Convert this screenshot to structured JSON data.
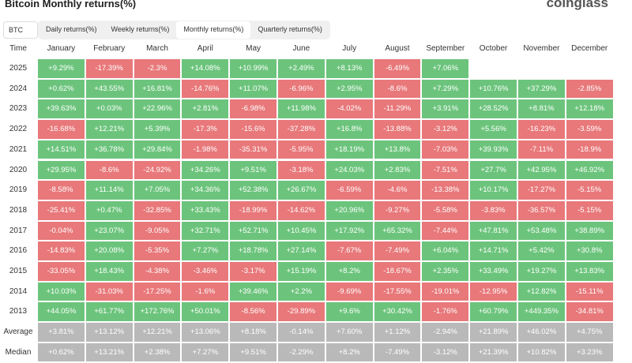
{
  "header": {
    "title": "Bitcoin Monthly returns(%)",
    "logo": "coinglass"
  },
  "selector": "BTC",
  "tabs": [
    "Daily returns(%)",
    "Weekly returns(%)",
    "Monthly returns(%)",
    "Quarterly returns(%)"
  ],
  "active_tab": 2,
  "colors": {
    "positive": "#6cc47c",
    "negative": "#e8787a",
    "summary": "#b9b9b9"
  },
  "table": {
    "columns": [
      "Time",
      "January",
      "February",
      "March",
      "April",
      "May",
      "June",
      "July",
      "August",
      "September",
      "October",
      "November",
      "December"
    ],
    "rows": [
      [
        "2025",
        "+9.29%",
        "-17.39%",
        "-2.3%",
        "+14.08%",
        "+10.99%",
        "+2.49%",
        "+8.13%",
        "-6.49%",
        "+7.06%"
      ],
      [
        "2024",
        "+0.62%",
        "+43.55%",
        "+16.81%",
        "-14.76%",
        "+11.07%",
        "-6.96%",
        "+2.95%",
        "-8.6%",
        "+7.29%",
        "+10.76%",
        "+37.29%",
        "-2.85%"
      ],
      [
        "2023",
        "+39.63%",
        "+0.03%",
        "+22.96%",
        "+2.81%",
        "-6.98%",
        "+11.98%",
        "-4.02%",
        "-11.29%",
        "+3.91%",
        "+28.52%",
        "+8.81%",
        "+12.18%"
      ],
      [
        "2022",
        "-16.68%",
        "+12.21%",
        "+5.39%",
        "-17.3%",
        "-15.6%",
        "-37.28%",
        "+16.8%",
        "-13.88%",
        "-3.12%",
        "+5.56%",
        "-16.23%",
        "-3.59%"
      ],
      [
        "2021",
        "+14.51%",
        "+36.78%",
        "+29.84%",
        "-1.98%",
        "-35.31%",
        "-5.95%",
        "+18.19%",
        "+13.8%",
        "-7.03%",
        "+39.93%",
        "-7.11%",
        "-18.9%"
      ],
      [
        "2020",
        "+29.95%",
        "-8.6%",
        "-24.92%",
        "+34.26%",
        "+9.51%",
        "-3.18%",
        "+24.03%",
        "+2.83%",
        "-7.51%",
        "+27.7%",
        "+42.95%",
        "+46.92%"
      ],
      [
        "2019",
        "-8.58%",
        "+11.14%",
        "+7.05%",
        "+34.36%",
        "+52.38%",
        "+26.67%",
        "-6.59%",
        "-4.6%",
        "-13.38%",
        "+10.17%",
        "-17.27%",
        "-5.15%"
      ],
      [
        "2018",
        "-25.41%",
        "+0.47%",
        "-32.85%",
        "+33.43%",
        "-18.99%",
        "-14.62%",
        "+20.96%",
        "-9.27%",
        "-5.58%",
        "-3.83%",
        "-36.57%",
        "-5.15%"
      ],
      [
        "2017",
        "-0.04%",
        "+23.07%",
        "-9.05%",
        "+32.71%",
        "+52.71%",
        "+10.45%",
        "+17.92%",
        "+65.32%",
        "-7.44%",
        "+47.81%",
        "+53.48%",
        "+38.89%"
      ],
      [
        "2016",
        "-14.83%",
        "+20.08%",
        "-5.35%",
        "+7.27%",
        "+18.78%",
        "+27.14%",
        "-7.67%",
        "-7.49%",
        "+6.04%",
        "+14.71%",
        "+5.42%",
        "+30.8%"
      ],
      [
        "2015",
        "-33.05%",
        "+18.43%",
        "-4.38%",
        "-3.46%",
        "-3.17%",
        "+15.19%",
        "+8.2%",
        "-18.67%",
        "+2.35%",
        "+33.49%",
        "+19.27%",
        "+13.83%"
      ],
      [
        "2014",
        "+10.03%",
        "-31.03%",
        "-17.25%",
        "-1.6%",
        "+39.46%",
        "+2.2%",
        "-9.69%",
        "-17.55%",
        "-19.01%",
        "-12.95%",
        "+12.82%",
        "-15.11%"
      ],
      [
        "2013",
        "+44.05%",
        "+61.77%",
        "+172.76%",
        "+50.01%",
        "-8.56%",
        "-29.89%",
        "+9.6%",
        "+30.42%",
        "-1.76%",
        "+60.79%",
        "+449.35%",
        "-34.81%"
      ]
    ],
    "summary": [
      [
        "Average",
        "+3.81%",
        "+13.12%",
        "+12.21%",
        "+13.06%",
        "+8.18%",
        "-0.14%",
        "+7.60%",
        "+1.12%",
        "-2.94%",
        "+21.89%",
        "+46.02%",
        "+4.75%"
      ],
      [
        "Median",
        "+0.62%",
        "+13.21%",
        "+2.38%",
        "+7.27%",
        "+9.51%",
        "-2.29%",
        "+8.2%",
        "-7.49%",
        "-3.12%",
        "+21.39%",
        "+10.82%",
        "+3.23%"
      ]
    ]
  }
}
